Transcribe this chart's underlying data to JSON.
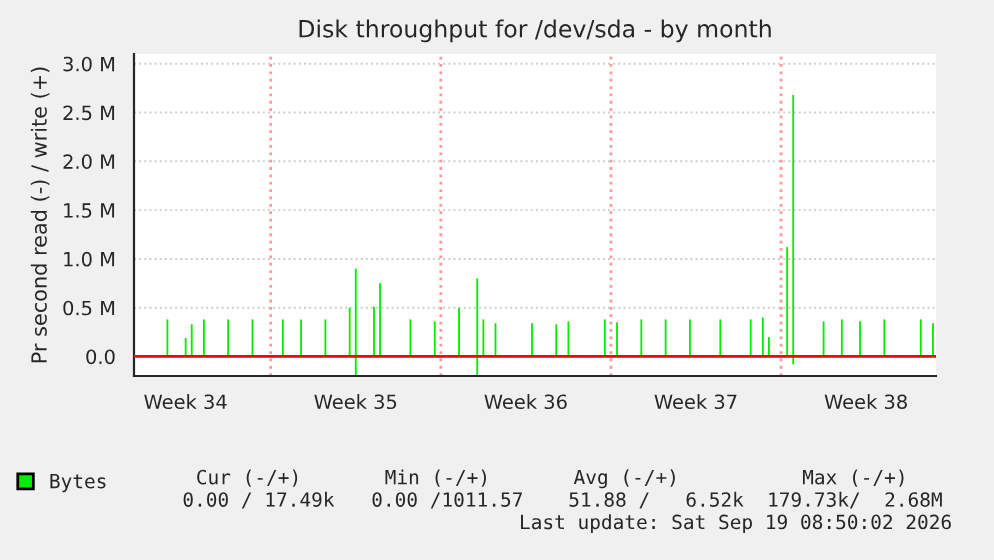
{
  "chart_data": {
    "type": "bar",
    "title": "Disk throughput for /dev/sda - by month",
    "ylabel": "Pr second read (-) / write (+)",
    "categories": [
      null,
      null,
      null,
      null,
      null,
      null,
      null,
      null,
      "Week 34",
      null,
      null,
      null,
      null,
      null,
      null,
      null,
      null,
      null,
      null,
      null,
      null,
      null,
      null,
      null,
      null,
      null,
      null,
      null,
      null,
      null,
      null,
      null,
      null,
      null,
      null,
      null,
      "Week 35",
      null,
      null,
      null,
      null,
      null,
      null,
      null,
      null,
      null,
      null,
      null,
      null,
      null,
      null,
      null,
      null,
      null,
      null,
      null,
      null,
      null,
      null,
      null,
      null,
      null,
      null,
      null,
      "Week 36",
      null,
      null,
      null,
      null,
      null,
      null,
      null,
      null,
      null,
      null,
      null,
      null,
      null,
      null,
      null,
      null,
      null,
      null,
      null,
      null,
      null,
      null,
      null,
      null,
      null,
      null,
      null,
      "Week 37",
      null,
      null,
      null,
      null,
      null,
      null,
      null,
      null,
      null,
      null,
      null,
      null,
      null,
      null,
      null,
      null,
      null,
      null,
      null,
      null,
      null,
      null,
      null,
      null,
      null,
      null,
      null,
      "Week 38",
      null,
      null,
      null,
      null,
      null,
      null,
      null,
      null,
      null,
      null,
      null
    ],
    "ylim": [
      -200000,
      3100000
    ],
    "yticks": [
      {
        "value": 0,
        "label": "0.0"
      },
      {
        "value": 500000,
        "label": "0.5 M"
      },
      {
        "value": 1000000,
        "label": "1.0 M"
      },
      {
        "value": 1500000,
        "label": "1.5 M"
      },
      {
        "value": 2000000,
        "label": "2.0 M"
      },
      {
        "value": 2500000,
        "label": "2.5 M"
      },
      {
        "value": 3000000,
        "label": "3.0 M"
      }
    ],
    "series": [
      {
        "name": "Bytes",
        "color": "#00ee00",
        "values": [
          0,
          0,
          0,
          0,
          0,
          380000,
          0,
          0,
          190000,
          330000,
          0,
          380000,
          0,
          0,
          0,
          380000,
          0,
          0,
          0,
          380000,
          0,
          0,
          0,
          0,
          380000,
          0,
          0,
          380000,
          0,
          0,
          0,
          380000,
          0,
          0,
          0,
          500000,
          900000,
          0,
          0,
          510000,
          750000,
          0,
          0,
          0,
          0,
          380000,
          0,
          0,
          0,
          360000,
          0,
          0,
          0,
          500000,
          0,
          0,
          800000,
          380000,
          0,
          340000,
          0,
          0,
          0,
          0,
          0,
          340000,
          0,
          0,
          0,
          330000,
          0,
          360000,
          0,
          0,
          0,
          0,
          0,
          380000,
          0,
          350000,
          0,
          0,
          0,
          380000,
          0,
          0,
          0,
          380000,
          0,
          0,
          0,
          380000,
          0,
          0,
          0,
          0,
          380000,
          0,
          0,
          0,
          0,
          380000,
          0,
          400000,
          200000,
          0,
          0,
          1120000,
          2680000,
          0,
          0,
          0,
          0,
          360000,
          0,
          0,
          380000,
          0,
          0,
          360000,
          0,
          0,
          0,
          380000,
          0,
          0,
          0,
          0,
          0,
          380000,
          0,
          340000
        ]
      },
      {
        "color": "#00ee00",
        "values": [
          0,
          0,
          0,
          0,
          0,
          0,
          0,
          0,
          0,
          0,
          0,
          0,
          0,
          0,
          0,
          0,
          0,
          0,
          0,
          0,
          0,
          0,
          0,
          0,
          0,
          0,
          0,
          0,
          0,
          0,
          0,
          0,
          0,
          0,
          0,
          0,
          -190000,
          0,
          0,
          0,
          0,
          0,
          0,
          0,
          0,
          0,
          0,
          0,
          0,
          0,
          0,
          0,
          0,
          0,
          0,
          0,
          -190000,
          0,
          0,
          0,
          0,
          0,
          0,
          0,
          0,
          0,
          0,
          0,
          0,
          0,
          0,
          0,
          0,
          0,
          0,
          0,
          0,
          0,
          0,
          0,
          0,
          0,
          0,
          0,
          0,
          0,
          0,
          0,
          0,
          0,
          0,
          0,
          0,
          0,
          0,
          0,
          0,
          0,
          0,
          0,
          0,
          0,
          0,
          0,
          0,
          0,
          0,
          0,
          -80000,
          0,
          0,
          0,
          0,
          0,
          0,
          0,
          0,
          0,
          0,
          0,
          0,
          0,
          0,
          0,
          0,
          0,
          0,
          0,
          0,
          0,
          0,
          0
        ]
      }
    ],
    "ref_lines": [
      {
        "axis": "y",
        "value": 0,
        "color": "#ff0000",
        "line_style": "solid"
      }
    ],
    "grid": true,
    "legend": "bottom left",
    "annotations": [
      "Cur (-/+)",
      "Min (-/+)",
      "Avg (-/+)",
      "Max (-/+)",
      "0.00 / 17.49k",
      "0.00 /1011.57",
      "51.88 /   6.52k",
      "179.73k/  2.68M",
      "Last update: Sat Sep 19 08:50:02 2026"
    ]
  }
}
